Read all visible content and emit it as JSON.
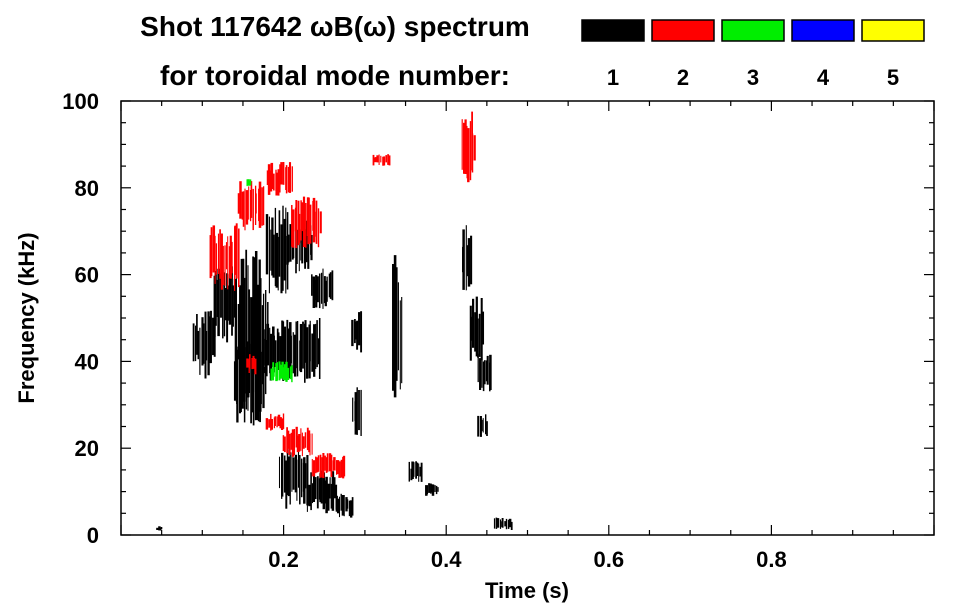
{
  "chart_data": {
    "type": "scatter",
    "title": "Shot 117642 ωB(ω) spectrum",
    "subtitle": "for toroidal mode number:",
    "xlabel": "Time (s)",
    "ylabel": "Frequency (kHz)",
    "xlim": [
      0.0,
      1.0
    ],
    "ylim": [
      0,
      100
    ],
    "x_ticks": [
      "0.2",
      "0.4",
      "0.6",
      "0.8"
    ],
    "x_tick_values": [
      0.2,
      0.4,
      0.6,
      0.8
    ],
    "y_ticks": [
      "0",
      "20",
      "40",
      "60",
      "80",
      "100"
    ],
    "y_tick_values": [
      0,
      20,
      40,
      60,
      80,
      100
    ],
    "legend": [
      {
        "mode": "1",
        "color": "#000000"
      },
      {
        "mode": "2",
        "color": "#ff0000"
      },
      {
        "mode": "3",
        "color": "#00ee00"
      },
      {
        "mode": "4",
        "color": "#0000ff"
      },
      {
        "mode": "5",
        "color": "#ffff00"
      }
    ],
    "series": [
      {
        "mode": "1",
        "color": "#000000",
        "features": [
          {
            "x": [
              0.09,
              0.115
            ],
            "y": [
              36,
              52
            ]
          },
          {
            "x": [
              0.115,
              0.14
            ],
            "y": [
              44,
              62
            ]
          },
          {
            "x": [
              0.14,
              0.18
            ],
            "y": [
              28,
              66
            ]
          },
          {
            "x": [
              0.18,
              0.205
            ],
            "y": [
              55,
              76
            ]
          },
          {
            "x": [
              0.205,
              0.235
            ],
            "y": [
              60,
              73
            ]
          },
          {
            "x": [
              0.235,
              0.26
            ],
            "y": [
              52,
              62
            ]
          },
          {
            "x": [
              0.14,
              0.175
            ],
            "y": [
              25,
              45
            ]
          },
          {
            "x": [
              0.175,
              0.245
            ],
            "y": [
              35,
              50
            ]
          },
          {
            "x": [
              0.285,
              0.295
            ],
            "y": [
              42,
              52
            ]
          },
          {
            "x": [
              0.285,
              0.295
            ],
            "y": [
              22,
              35
            ]
          },
          {
            "x": [
              0.335,
              0.345
            ],
            "y": [
              30,
              65
            ]
          },
          {
            "x": [
              0.195,
              0.23
            ],
            "y": [
              6,
              20
            ]
          },
          {
            "x": [
              0.23,
              0.265
            ],
            "y": [
              5,
              15
            ]
          },
          {
            "x": [
              0.265,
              0.285
            ],
            "y": [
              4,
              10
            ]
          },
          {
            "x": [
              0.355,
              0.37
            ],
            "y": [
              12,
              17
            ]
          },
          {
            "x": [
              0.375,
              0.39
            ],
            "y": [
              9,
              12
            ]
          },
          {
            "x": [
              0.42,
              0.43
            ],
            "y": [
              55,
              72
            ]
          },
          {
            "x": [
              0.43,
              0.445
            ],
            "y": [
              40,
              55
            ]
          },
          {
            "x": [
              0.44,
              0.455
            ],
            "y": [
              32,
              42
            ]
          },
          {
            "x": [
              0.44,
              0.45
            ],
            "y": [
              22,
              28
            ]
          },
          {
            "x": [
              0.46,
              0.48
            ],
            "y": [
              1,
              4
            ]
          },
          {
            "x": [
              0.045,
              0.05
            ],
            "y": [
              1,
              2
            ]
          }
        ]
      },
      {
        "mode": "2",
        "color": "#ff0000",
        "features": [
          {
            "x": [
              0.11,
              0.145
            ],
            "y": [
              56,
              72
            ]
          },
          {
            "x": [
              0.145,
              0.175
            ],
            "y": [
              70,
              82
            ]
          },
          {
            "x": [
              0.18,
              0.21
            ],
            "y": [
              78,
              86
            ]
          },
          {
            "x": [
              0.21,
              0.245
            ],
            "y": [
              66,
              78
            ]
          },
          {
            "x": [
              0.18,
              0.2
            ],
            "y": [
              24,
              28
            ]
          },
          {
            "x": [
              0.2,
              0.235
            ],
            "y": [
              18,
              25
            ]
          },
          {
            "x": [
              0.235,
              0.275
            ],
            "y": [
              13,
              19
            ]
          },
          {
            "x": [
              0.31,
              0.33
            ],
            "y": [
              85,
              88
            ]
          },
          {
            "x": [
              0.42,
              0.435
            ],
            "y": [
              80,
              98
            ]
          },
          {
            "x": [
              0.155,
              0.165
            ],
            "y": [
              37,
              42
            ]
          }
        ]
      },
      {
        "mode": "3",
        "color": "#00ee00",
        "features": [
          {
            "x": [
              0.155,
              0.16
            ],
            "y": [
              80,
              82
            ]
          },
          {
            "x": [
              0.185,
              0.21
            ],
            "y": [
              35,
              40
            ]
          }
        ]
      }
    ]
  }
}
